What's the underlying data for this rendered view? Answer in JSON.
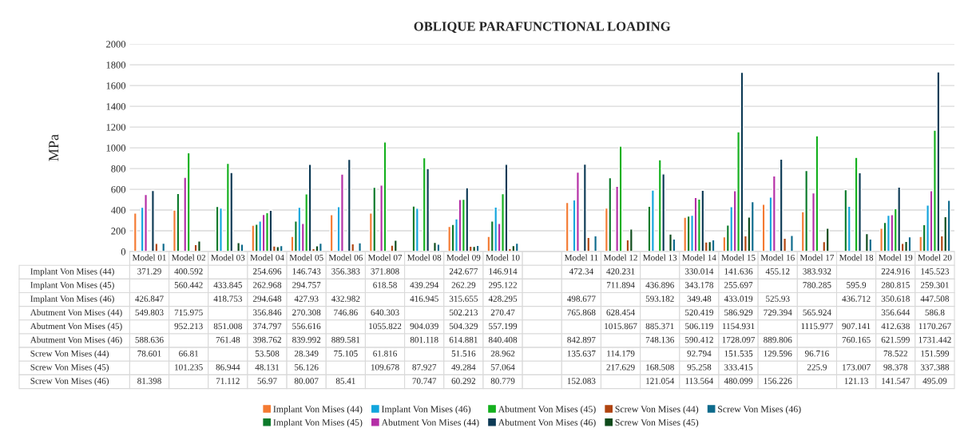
{
  "chart_data": {
    "type": "bar",
    "title": "OBLIQUE PARAFUNCTIONAL LOADING",
    "ylabel": "MPa",
    "categories": [
      "Model 01",
      "Model 02",
      "Model 03",
      "Model 04",
      "Model 05",
      "Model 06",
      "Model 07",
      "Model 08",
      "Model 09",
      "Model 10",
      null,
      "Model 11",
      "Model 12",
      "Model 13",
      "Model 14",
      "Model 15",
      "Model 16",
      "Model 17",
      "Model 18",
      "Model 19",
      "Model 20"
    ],
    "ylim": [
      0,
      2000
    ],
    "yticks": [
      0,
      200,
      400,
      600,
      800,
      1000,
      1200,
      1400,
      1600,
      1800,
      2000
    ],
    "grid": "y",
    "legend": "bottom",
    "data_labels": true,
    "series": [
      {
        "name": "Implant Von Mises (44)",
        "color": "#f47a32",
        "values": [
          371.29,
          400.592,
          null,
          254.696,
          146.743,
          356.383,
          371.808,
          null,
          242.677,
          146.914,
          null,
          472.34,
          420.231,
          null,
          330.014,
          141.636,
          455.12,
          383.932,
          null,
          224.916,
          145.523
        ]
      },
      {
        "name": "Implant Von Mises (45)",
        "color": "#0b7a2a",
        "values": [
          null,
          560.442,
          433.845,
          262.968,
          294.757,
          null,
          618.58,
          439.294,
          262.29,
          295.122,
          null,
          null,
          711.894,
          436.896,
          343.178,
          255.697,
          null,
          780.285,
          595.9,
          280.815,
          259.301
        ]
      },
      {
        "name": "Implant Von Mises (46)",
        "color": "#12a5dd",
        "values": [
          426.847,
          null,
          418.753,
          294.648,
          427.93,
          432.982,
          null,
          416.945,
          315.655,
          428.295,
          null,
          498.677,
          null,
          593.182,
          349.48,
          433.019,
          525.93,
          null,
          436.712,
          350.618,
          447.508
        ]
      },
      {
        "name": "Abutment Von Mises (44)",
        "color": "#b42ea6",
        "values": [
          549.803,
          715.975,
          null,
          356.846,
          270.308,
          746.86,
          640.303,
          null,
          502.213,
          270.47,
          null,
          765.868,
          628.454,
          null,
          520.419,
          586.929,
          729.394,
          565.924,
          null,
          356.644,
          586.8
        ]
      },
      {
        "name": "Abutment Von Mises (45)",
        "color": "#14b01e",
        "values": [
          null,
          952.213,
          851.008,
          374.797,
          556.616,
          null,
          1055.822,
          904.039,
          504.329,
          557.199,
          null,
          null,
          1015.867,
          885.371,
          506.119,
          1154.931,
          null,
          1115.977,
          907.141,
          412.638,
          1170.267
        ]
      },
      {
        "name": "Abutment Von Mises (46)",
        "color": "#0d3a55",
        "values": [
          588.636,
          null,
          761.48,
          398.762,
          839.992,
          889.581,
          null,
          801.118,
          614.881,
          840.408,
          null,
          842.897,
          null,
          748.136,
          590.412,
          1728.097,
          889.806,
          null,
          760.165,
          621.599,
          1731.442
        ]
      },
      {
        "name": "Screw Von Mises (44)",
        "color": "#b0440f",
        "values": [
          78.601,
          66.81,
          null,
          53.508,
          28.349,
          75.105,
          61.816,
          null,
          51.516,
          28.962,
          null,
          135.637,
          114.179,
          null,
          92.794,
          151.535,
          129.596,
          96.716,
          null,
          78.522,
          151.599
        ]
      },
      {
        "name": "Screw Von Mises (45)",
        "color": "#0d4a1a",
        "values": [
          null,
          101.235,
          86.944,
          48.131,
          56.126,
          null,
          109.678,
          87.927,
          49.284,
          57.064,
          null,
          null,
          217.629,
          168.508,
          95.258,
          333.415,
          null,
          225.9,
          173.007,
          98.378,
          337.388
        ]
      },
      {
        "name": "Screw Von Mises (46)",
        "color": "#0d6a8c",
        "values": [
          81.398,
          null,
          71.112,
          56.97,
          80.007,
          85.41,
          null,
          70.747,
          60.292,
          80.779,
          null,
          152.083,
          null,
          121.054,
          113.564,
          480.099,
          156.226,
          null,
          121.13,
          141.547,
          495.09
        ]
      }
    ]
  }
}
